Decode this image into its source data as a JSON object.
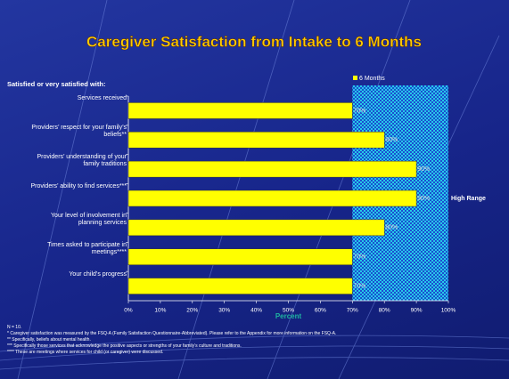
{
  "chart_data": {
    "type": "bar",
    "orientation": "horizontal",
    "title": "Caregiver Satisfaction from Intake to 6 Months",
    "subtitle": "Satisfied or very satisfied with:",
    "categories": [
      "Services received",
      "Providers’ respect for your family’s beliefs**",
      "Providers’ understanding of your family traditions",
      "Providers’ ability to find services***",
      "Your level of involvement in planning services",
      "Times asked to participate in meetings****",
      "Your child’s progress"
    ],
    "series": [
      {
        "name": "6 Months",
        "color": "#ffff00",
        "values": [
          70,
          80,
          90,
          90,
          80,
          70,
          70
        ],
        "value_labels": [
          "70%",
          "80%",
          "90%",
          "90%",
          "80%",
          "70%",
          "70%"
        ]
      }
    ],
    "xlim": [
      0,
      100
    ],
    "xticks": [
      {
        "value": 0,
        "label": "0%"
      },
      {
        "value": 10,
        "label": "10%"
      },
      {
        "value": 20,
        "label": "20%"
      },
      {
        "value": 30,
        "label": "30%"
      },
      {
        "value": 40,
        "label": "40%"
      },
      {
        "value": 50,
        "label": "50%"
      },
      {
        "value": 60,
        "label": "60%"
      },
      {
        "value": 70,
        "label": "70%"
      },
      {
        "value": 80,
        "label": "80%"
      },
      {
        "value": 90,
        "label": "90%"
      },
      {
        "value": 100,
        "label": "100%"
      }
    ],
    "xlabel": "Percent",
    "high_range": {
      "label": "High Range",
      "from": 70,
      "to": 100
    },
    "legend": "top-right",
    "footnotes": [
      "N = 10.",
      "* Caregiver satisfaction was measured by the FSQ-A (Family Satisfaction Questionnaire-Abbreviated). Please refer to the Appendix for more information on the FSQ-A.",
      "** Specifically, beliefs about mental health.",
      "*** Specifically those services that acknowledge the positive aspects or strengths of your family’s culture and traditions.",
      "**** These are meetings where services for child (or caregiver) were discussed."
    ]
  }
}
